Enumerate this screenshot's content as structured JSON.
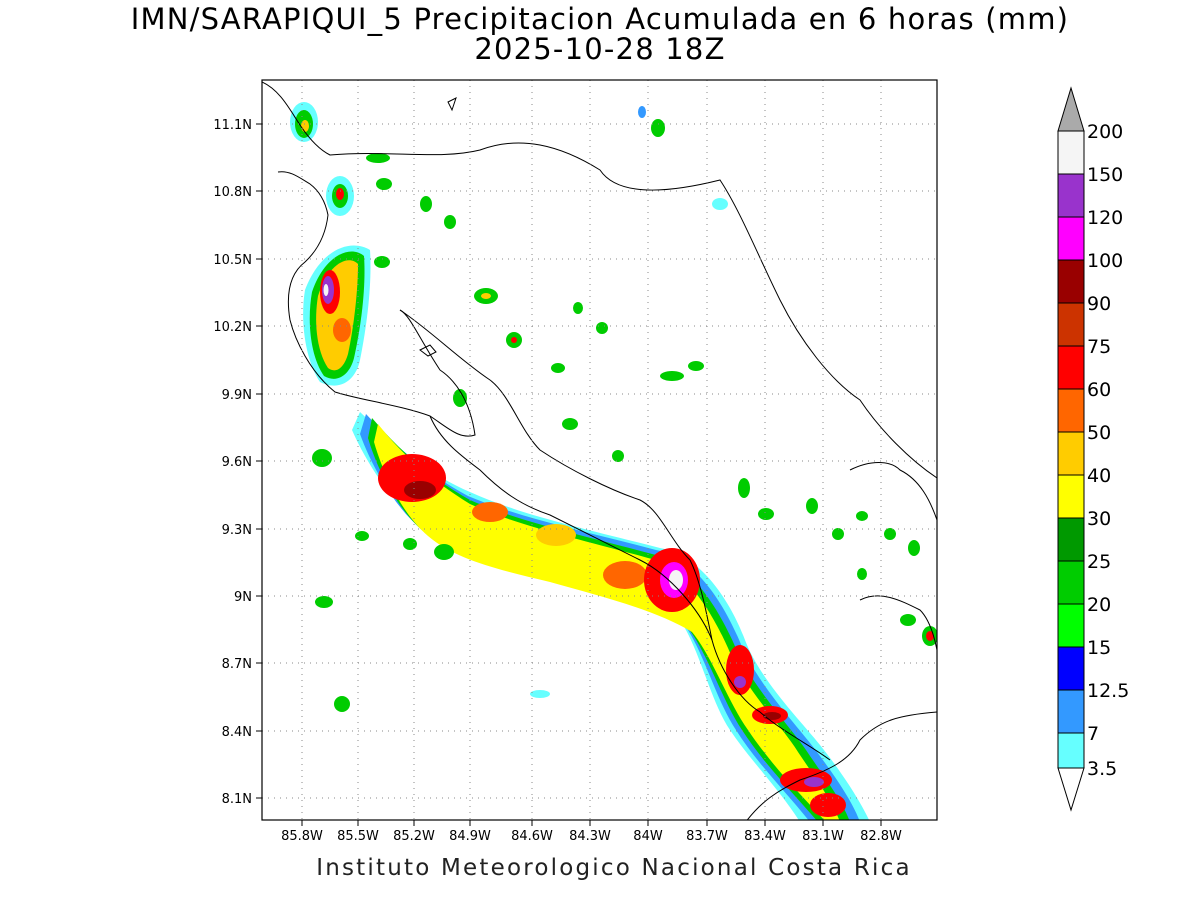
{
  "title": "IMN/SARAPIQUI_5 Precipitacion Acumulada en 6 horas (mm)",
  "subtitle": "2025-10-28 18Z",
  "footer": "Instituto Meteorologico Nacional Costa Rica",
  "map": {
    "lon_range": [
      -86.05,
      -82.6
    ],
    "lat_range": [
      8.0,
      11.3
    ],
    "grid": "dotted",
    "lon_ticks": [
      "85.8W",
      "85.5W",
      "85.2W",
      "84.9W",
      "84.6W",
      "84.3W",
      "84W",
      "83.7W",
      "83.4W",
      "83.1W",
      "82.8W"
    ],
    "lat_ticks": [
      "11.1N",
      "10.8N",
      "10.5N",
      "10.2N",
      "9.9N",
      "9.6N",
      "9.3N",
      "9N",
      "8.7N",
      "8.4N",
      "8.1N"
    ]
  },
  "colorbar": {
    "labels": [
      "3.5",
      "7",
      "12.5",
      "15",
      "20",
      "25",
      "30",
      "40",
      "50",
      "60",
      "75",
      "90",
      "100",
      "120",
      "150",
      "200"
    ],
    "colors": [
      "#66ffff",
      "#3399ff",
      "#0000ff",
      "#00ff00",
      "#00cc00",
      "#009900",
      "#ffff00",
      "#ffcc00",
      "#ff6600",
      "#ff0000",
      "#cc3300",
      "#990000",
      "#ff00ff",
      "#9933cc",
      "#f5f5f5",
      "#aaaaaa"
    ]
  },
  "precip_cells": [
    {
      "lon": -85.8,
      "lat": 11.08,
      "level": 5,
      "name": "cell-nicoya-north"
    },
    {
      "lon": -85.62,
      "lat": 10.78,
      "level": 5,
      "name": "cell-guanacaste-north"
    },
    {
      "lon": -85.68,
      "lat": 10.4,
      "level": 13,
      "name": "cell-guanacaste-west"
    },
    {
      "lon": -85.05,
      "lat": 9.45,
      "level": 11,
      "name": "cell-nicoya-gulf"
    },
    {
      "lon": -84.6,
      "lat": 9.28,
      "level": 7,
      "name": "cell-central-pacific"
    },
    {
      "lon": -83.87,
      "lat": 9.06,
      "level": 14,
      "name": "cell-talamanca"
    },
    {
      "lon": -83.5,
      "lat": 8.62,
      "level": 13,
      "name": "cell-osa"
    },
    {
      "lon": -83.42,
      "lat": 8.45,
      "level": 12,
      "name": "cell-golfito"
    },
    {
      "lon": -83.1,
      "lat": 8.18,
      "level": 13,
      "name": "cell-burica"
    },
    {
      "lon": -84.75,
      "lat": 10.15,
      "level": 5,
      "name": "cell-north-interior"
    },
    {
      "lon": -82.6,
      "lat": 8.8,
      "level": 5,
      "name": "cell-panama-east"
    }
  ]
}
